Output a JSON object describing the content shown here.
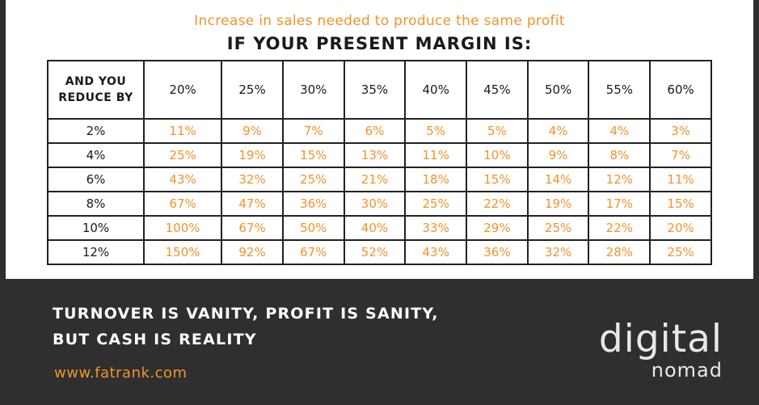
{
  "header": {
    "subtitle": "Increase in sales needed to produce the same profit",
    "title": "IF YOUR PRESENT MARGIN IS:"
  },
  "table": {
    "corner_label": [
      "AND YOU",
      "REDUCE BY"
    ],
    "columns": [
      "20%",
      "25%",
      "30%",
      "35%",
      "40%",
      "45%",
      "50%",
      "55%",
      "60%"
    ],
    "rows": [
      {
        "label": "2%",
        "values": [
          "11%",
          "9%",
          "7%",
          "6%",
          "5%",
          "5%",
          "4%",
          "4%",
          "3%"
        ]
      },
      {
        "label": "4%",
        "values": [
          "25%",
          "19%",
          "15%",
          "13%",
          "11%",
          "10%",
          "9%",
          "8%",
          "7%"
        ]
      },
      {
        "label": "6%",
        "values": [
          "43%",
          "32%",
          "25%",
          "21%",
          "18%",
          "15%",
          "14%",
          "12%",
          "11%"
        ]
      },
      {
        "label": "8%",
        "values": [
          "67%",
          "47%",
          "36%",
          "30%",
          "25%",
          "22%",
          "19%",
          "17%",
          "15%"
        ]
      },
      {
        "label": "10%",
        "values": [
          "100%",
          "67%",
          "50%",
          "40%",
          "33%",
          "29%",
          "25%",
          "22%",
          "20%"
        ]
      },
      {
        "label": "12%",
        "values": [
          "150%",
          "92%",
          "67%",
          "52%",
          "43%",
          "36%",
          "32%",
          "28%",
          "25%"
        ]
      }
    ]
  },
  "footer": {
    "quote_line1": "TURNOVER IS VANITY, PROFIT IS SANITY,",
    "quote_line2": "BUT CASH IS REALITY",
    "url": "www.fatrank.com"
  },
  "logo": {
    "top": "digital",
    "bottom": "nomad"
  },
  "colors": {
    "background": "#2f2f2f",
    "panel": "#ffffff",
    "accent": "#f0932b",
    "text": "#1a1a1a"
  }
}
